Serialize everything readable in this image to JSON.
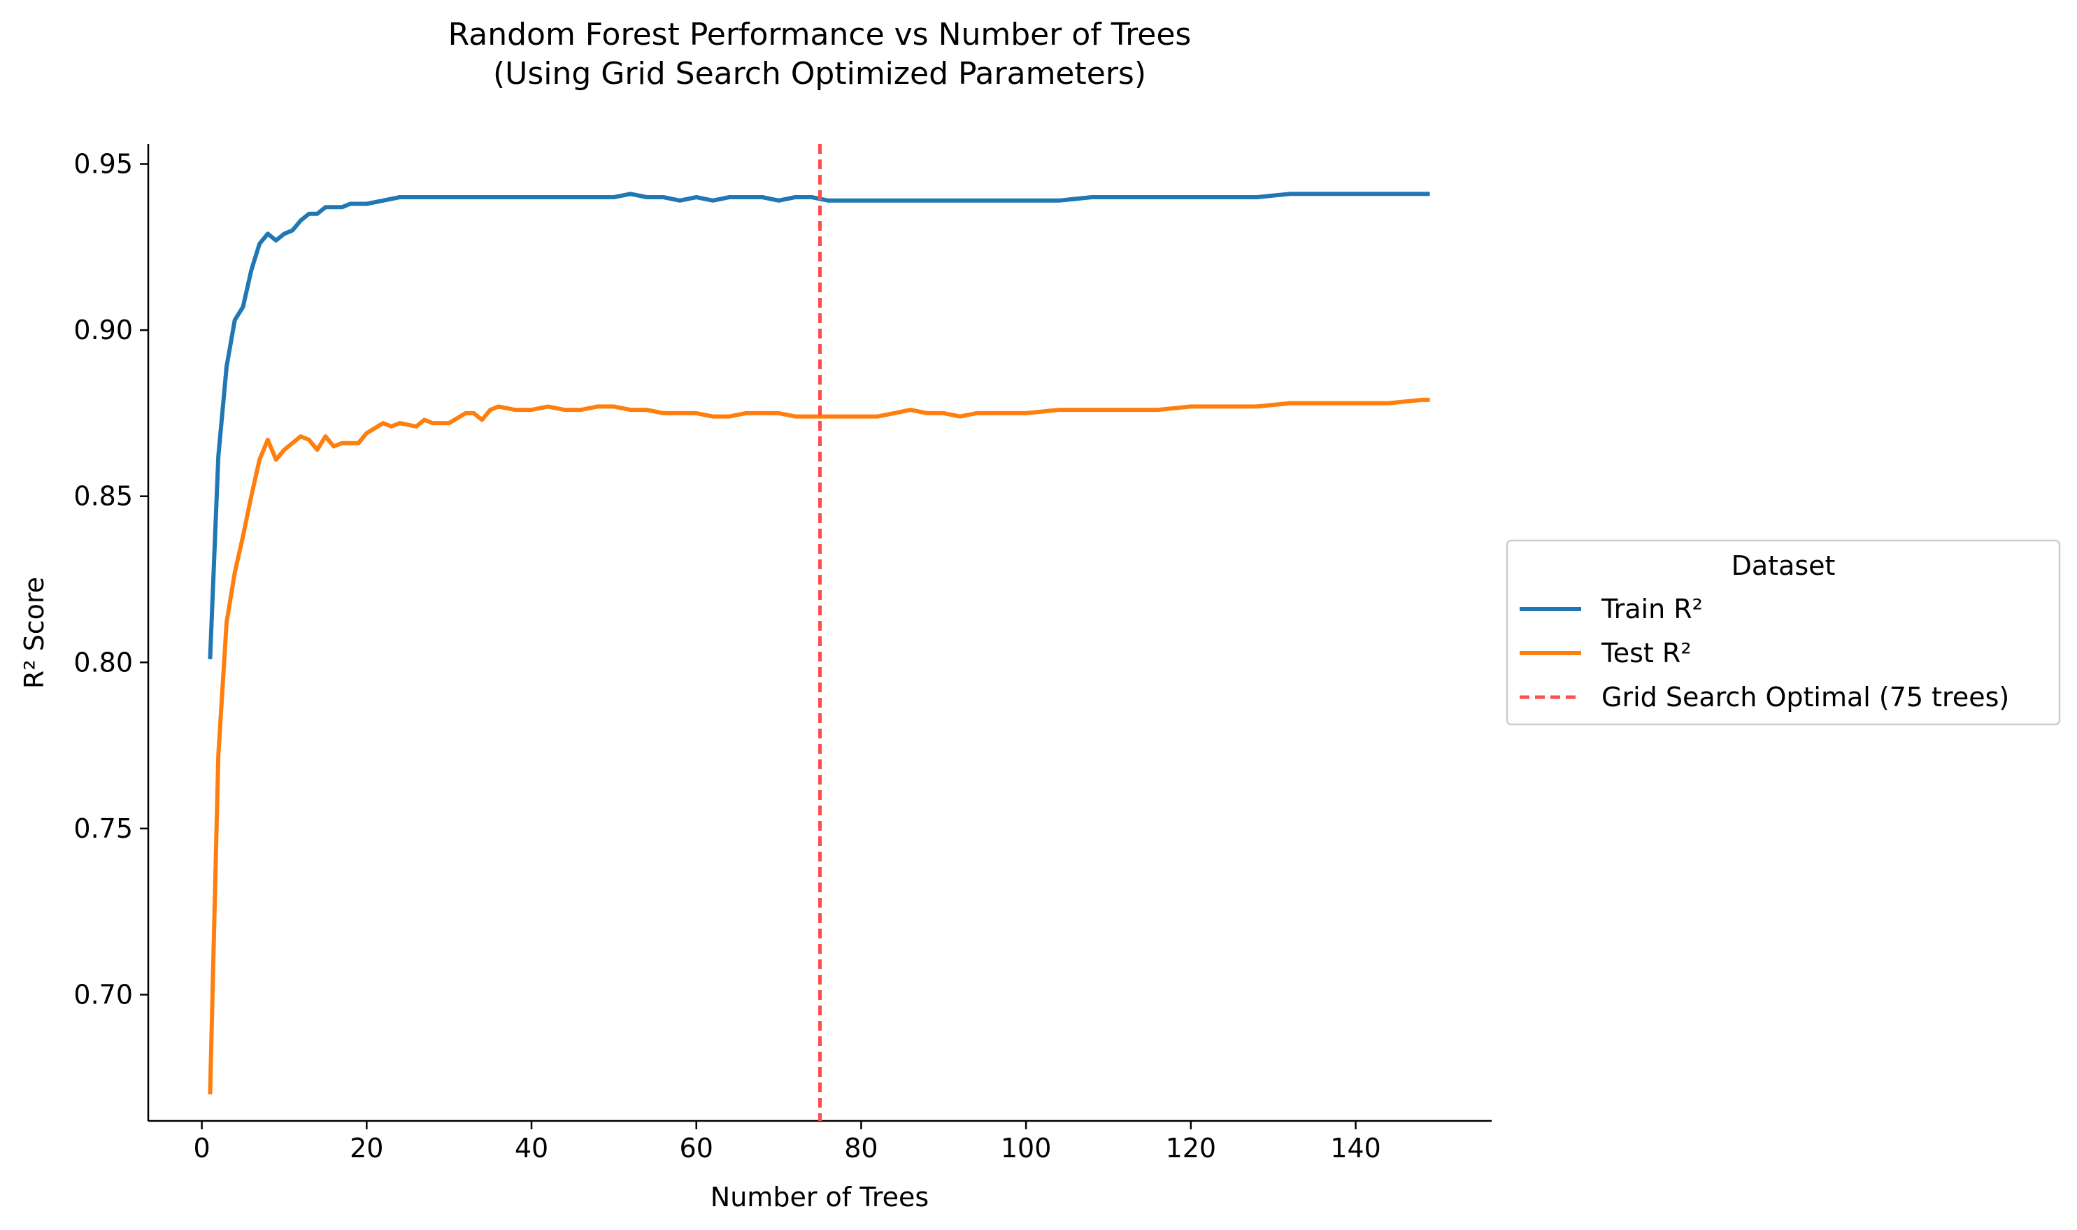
{
  "chart_data": {
    "type": "line",
    "title": "Random Forest Performance vs Number of Trees",
    "subtitle": "(Using Grid Search Optimized Parameters)",
    "xlabel": "Number of Trees",
    "ylabel": "R² Score",
    "xlim": [
      -6.5,
      156.5
    ],
    "ylim": [
      0.662,
      0.956
    ],
    "xticks": [
      0,
      20,
      40,
      60,
      80,
      100,
      120,
      140
    ],
    "yticks": [
      0.7,
      0.75,
      0.8,
      0.85,
      0.9,
      0.95
    ],
    "xtick_labels": [
      "0",
      "20",
      "40",
      "60",
      "80",
      100,
      120,
      140
    ],
    "ytick_labels": [
      "0.70",
      "0.75",
      "0.80",
      "0.85",
      "0.90",
      "0.95"
    ],
    "grid": false,
    "legend": {
      "title": "Dataset",
      "placement": "outside-right"
    },
    "series": [
      {
        "name": "Train R²",
        "color": "#1f77b4",
        "points": [
          [
            1,
            0.801
          ],
          [
            2,
            0.862
          ],
          [
            3,
            0.889
          ],
          [
            4,
            0.903
          ],
          [
            5,
            0.907
          ],
          [
            6,
            0.918
          ],
          [
            7,
            0.926
          ],
          [
            8,
            0.929
          ],
          [
            9,
            0.927
          ],
          [
            10,
            0.929
          ],
          [
            11,
            0.93
          ],
          [
            12,
            0.933
          ],
          [
            13,
            0.935
          ],
          [
            14,
            0.935
          ],
          [
            15,
            0.937
          ],
          [
            16,
            0.937
          ],
          [
            17,
            0.937
          ],
          [
            18,
            0.938
          ],
          [
            19,
            0.938
          ],
          [
            20,
            0.938
          ],
          [
            22,
            0.939
          ],
          [
            24,
            0.94
          ],
          [
            25,
            0.94
          ],
          [
            26,
            0.94
          ],
          [
            27,
            0.94
          ],
          [
            28,
            0.94
          ],
          [
            30,
            0.94
          ],
          [
            32,
            0.94
          ],
          [
            34,
            0.94
          ],
          [
            35,
            0.94
          ],
          [
            36,
            0.94
          ],
          [
            38,
            0.94
          ],
          [
            40,
            0.94
          ],
          [
            42,
            0.94
          ],
          [
            44,
            0.94
          ],
          [
            46,
            0.94
          ],
          [
            48,
            0.94
          ],
          [
            50,
            0.94
          ],
          [
            52,
            0.941
          ],
          [
            54,
            0.94
          ],
          [
            56,
            0.94
          ],
          [
            58,
            0.939
          ],
          [
            60,
            0.94
          ],
          [
            62,
            0.939
          ],
          [
            64,
            0.94
          ],
          [
            66,
            0.94
          ],
          [
            68,
            0.94
          ],
          [
            70,
            0.939
          ],
          [
            72,
            0.94
          ],
          [
            74,
            0.94
          ],
          [
            76,
            0.939
          ],
          [
            78,
            0.939
          ],
          [
            80,
            0.939
          ],
          [
            82,
            0.939
          ],
          [
            84,
            0.939
          ],
          [
            86,
            0.939
          ],
          [
            88,
            0.939
          ],
          [
            90,
            0.939
          ],
          [
            92,
            0.939
          ],
          [
            94,
            0.939
          ],
          [
            96,
            0.939
          ],
          [
            98,
            0.939
          ],
          [
            100,
            0.939
          ],
          [
            104,
            0.939
          ],
          [
            108,
            0.94
          ],
          [
            112,
            0.94
          ],
          [
            116,
            0.94
          ],
          [
            120,
            0.94
          ],
          [
            124,
            0.94
          ],
          [
            128,
            0.94
          ],
          [
            132,
            0.941
          ],
          [
            136,
            0.941
          ],
          [
            140,
            0.941
          ],
          [
            144,
            0.941
          ],
          [
            148,
            0.941
          ],
          [
            149,
            0.941
          ]
        ]
      },
      {
        "name": "Test R²",
        "color": "#ff7f0e",
        "points": [
          [
            1,
            0.67
          ],
          [
            2,
            0.772
          ],
          [
            3,
            0.812
          ],
          [
            4,
            0.827
          ],
          [
            5,
            0.838
          ],
          [
            6,
            0.85
          ],
          [
            7,
            0.861
          ],
          [
            8,
            0.867
          ],
          [
            9,
            0.861
          ],
          [
            10,
            0.864
          ],
          [
            11,
            0.866
          ],
          [
            12,
            0.868
          ],
          [
            13,
            0.867
          ],
          [
            14,
            0.864
          ],
          [
            15,
            0.868
          ],
          [
            16,
            0.865
          ],
          [
            17,
            0.866
          ],
          [
            18,
            0.866
          ],
          [
            19,
            0.866
          ],
          [
            20,
            0.869
          ],
          [
            22,
            0.872
          ],
          [
            23,
            0.871
          ],
          [
            24,
            0.872
          ],
          [
            26,
            0.871
          ],
          [
            27,
            0.873
          ],
          [
            28,
            0.872
          ],
          [
            30,
            0.872
          ],
          [
            32,
            0.875
          ],
          [
            33,
            0.875
          ],
          [
            34,
            0.873
          ],
          [
            35,
            0.876
          ],
          [
            36,
            0.877
          ],
          [
            38,
            0.876
          ],
          [
            40,
            0.876
          ],
          [
            42,
            0.877
          ],
          [
            44,
            0.876
          ],
          [
            46,
            0.876
          ],
          [
            48,
            0.877
          ],
          [
            50,
            0.877
          ],
          [
            52,
            0.876
          ],
          [
            54,
            0.876
          ],
          [
            56,
            0.875
          ],
          [
            58,
            0.875
          ],
          [
            60,
            0.875
          ],
          [
            62,
            0.874
          ],
          [
            64,
            0.874
          ],
          [
            66,
            0.875
          ],
          [
            68,
            0.875
          ],
          [
            70,
            0.875
          ],
          [
            72,
            0.874
          ],
          [
            74,
            0.874
          ],
          [
            76,
            0.874
          ],
          [
            78,
            0.874
          ],
          [
            80,
            0.874
          ],
          [
            82,
            0.874
          ],
          [
            84,
            0.875
          ],
          [
            86,
            0.876
          ],
          [
            88,
            0.875
          ],
          [
            90,
            0.875
          ],
          [
            92,
            0.874
          ],
          [
            94,
            0.875
          ],
          [
            96,
            0.875
          ],
          [
            98,
            0.875
          ],
          [
            100,
            0.875
          ],
          [
            104,
            0.876
          ],
          [
            108,
            0.876
          ],
          [
            112,
            0.876
          ],
          [
            116,
            0.876
          ],
          [
            120,
            0.877
          ],
          [
            124,
            0.877
          ],
          [
            128,
            0.877
          ],
          [
            132,
            0.878
          ],
          [
            136,
            0.878
          ],
          [
            140,
            0.878
          ],
          [
            144,
            0.878
          ],
          [
            148,
            0.879
          ],
          [
            149,
            0.879
          ]
        ]
      }
    ],
    "reference_line": {
      "name": "Grid Search Optimal (75 trees)",
      "x": 75,
      "color": "#ff4d4d",
      "style": "dashed"
    }
  }
}
